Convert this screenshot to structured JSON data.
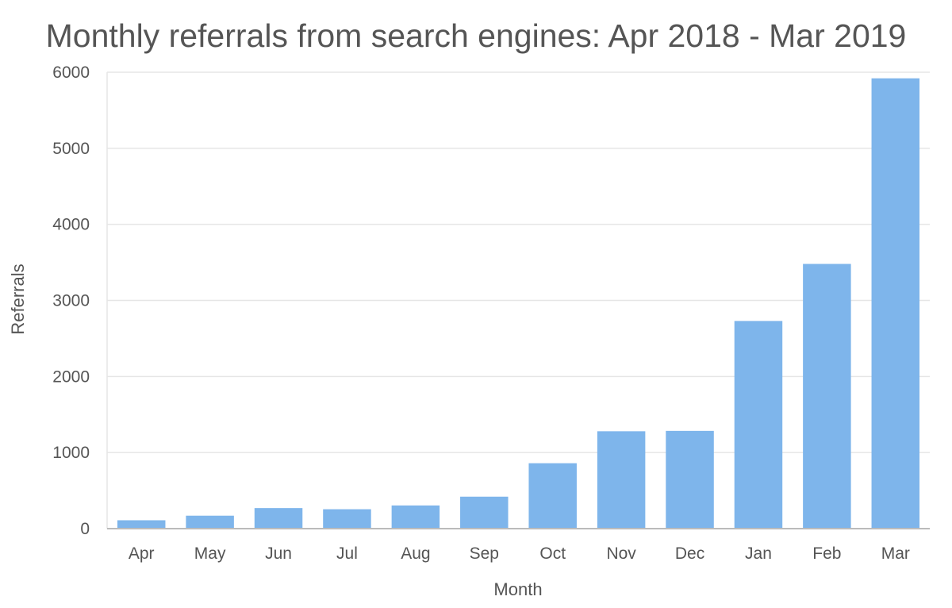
{
  "chart_data": {
    "type": "bar",
    "title": "Monthly referrals from search engines: Apr 2018 - Mar 2019",
    "xlabel": "Month",
    "ylabel": "Referrals",
    "categories": [
      "Apr",
      "May",
      "Jun",
      "Jul",
      "Aug",
      "Sep",
      "Oct",
      "Nov",
      "Dec",
      "Jan",
      "Feb",
      "Mar"
    ],
    "values": [
      110,
      170,
      270,
      255,
      305,
      420,
      860,
      1280,
      1285,
      2730,
      3480,
      5920
    ],
    "ylim": [
      0,
      6000
    ],
    "yticks": [
      "0",
      "1000",
      "2000",
      "3000",
      "4000",
      "5000",
      "6000"
    ],
    "grid": true,
    "legend": "none",
    "colors": {
      "bar": "#7eb5eb",
      "grid": "#e6e6e6",
      "axis": "#bbbbbb",
      "text": "#555555"
    }
  }
}
